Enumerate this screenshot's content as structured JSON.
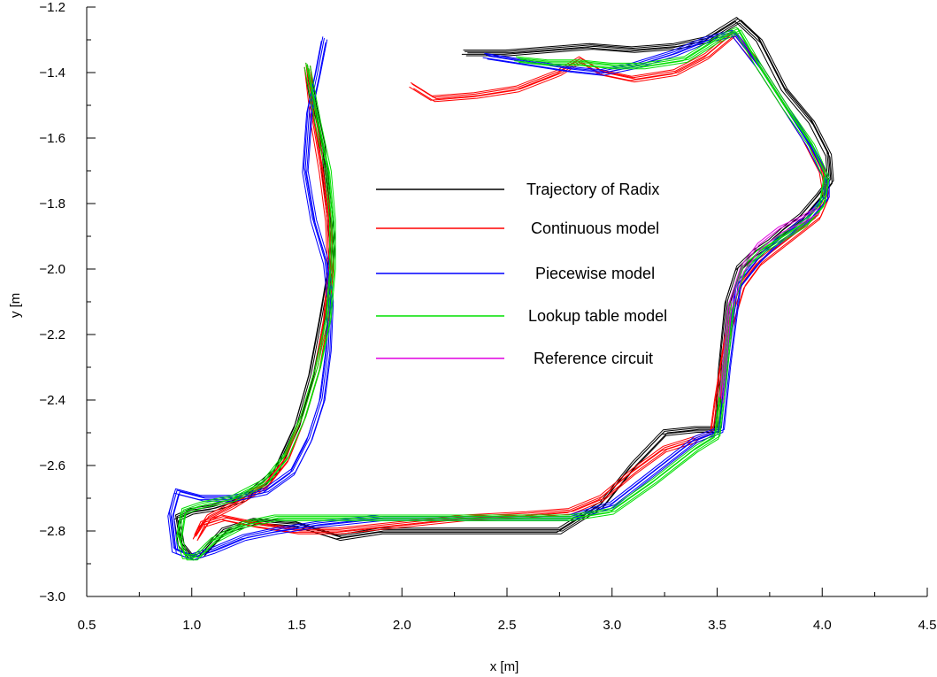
{
  "chart_data": {
    "type": "line",
    "xlabel": "x [m]",
    "ylabel": "y [m",
    "xlim": [
      0.5,
      4.5
    ],
    "ylim": [
      -3.0,
      -1.2
    ],
    "xticks": [
      "0.5",
      "1.0",
      "1.5",
      "2.0",
      "2.5",
      "3.0",
      "3.5",
      "4.0",
      "4.5"
    ],
    "yticks": [
      "−3.0",
      "−2.8",
      "−2.6",
      "−2.4",
      "−2.2",
      "−2.0",
      "−1.8",
      "−1.6",
      "−1.4",
      "−1.2"
    ],
    "grid": false,
    "legend_placement": "center",
    "series": [
      {
        "name": "Trajectory of Radix",
        "color": "#000000",
        "x": [
          1.55,
          1.58,
          1.62,
          1.65,
          1.67,
          1.66,
          1.62,
          1.57,
          1.5,
          1.4,
          1.25,
          1.1,
          1.0,
          0.93,
          0.95,
          1.0,
          1.05,
          1.15,
          1.3,
          1.5,
          1.7,
          1.9,
          2.2,
          2.5,
          2.75,
          2.95,
          3.1,
          3.25,
          3.4,
          3.5,
          3.52,
          3.55,
          3.6,
          3.68,
          3.75,
          3.82,
          3.9,
          3.98,
          4.04,
          4.03,
          3.95,
          3.82,
          3.7,
          3.6,
          3.55,
          3.45,
          3.3,
          3.1,
          2.9,
          2.7,
          2.5,
          2.3
        ],
        "y": [
          -1.38,
          -1.5,
          -1.62,
          -1.8,
          -1.92,
          -2.0,
          -2.15,
          -2.32,
          -2.48,
          -2.62,
          -2.7,
          -2.73,
          -2.74,
          -2.76,
          -2.84,
          -2.88,
          -2.87,
          -2.8,
          -2.77,
          -2.78,
          -2.82,
          -2.8,
          -2.8,
          -2.8,
          -2.8,
          -2.72,
          -2.6,
          -2.5,
          -2.49,
          -2.49,
          -2.3,
          -2.1,
          -2.0,
          -1.95,
          -1.92,
          -1.88,
          -1.84,
          -1.78,
          -1.73,
          -1.65,
          -1.55,
          -1.45,
          -1.3,
          -1.24,
          -1.26,
          -1.3,
          -1.32,
          -1.33,
          -1.32,
          -1.33,
          -1.34,
          -1.34
        ]
      },
      {
        "name": "Continuous model",
        "color": "#ff0000",
        "x": [
          1.55,
          1.58,
          1.62,
          1.65,
          1.66,
          1.64,
          1.6,
          1.53,
          1.45,
          1.35,
          1.2,
          1.08,
          1.02,
          1.05,
          1.15,
          1.3,
          1.5,
          1.7,
          2.0,
          2.3,
          2.6,
          2.8,
          2.95,
          3.1,
          3.25,
          3.4,
          3.48,
          3.5,
          3.55,
          3.62,
          3.7,
          3.8,
          3.9,
          3.98,
          4.02,
          4.0,
          3.92,
          3.8,
          3.68,
          3.58,
          3.45,
          3.3,
          3.1,
          2.95,
          2.85,
          2.75,
          2.55,
          2.35,
          2.15,
          2.05
        ],
        "y": [
          -1.38,
          -1.55,
          -1.7,
          -1.85,
          -2.0,
          -2.15,
          -2.3,
          -2.45,
          -2.58,
          -2.66,
          -2.72,
          -2.76,
          -2.82,
          -2.78,
          -2.76,
          -2.78,
          -2.8,
          -2.8,
          -2.78,
          -2.76,
          -2.75,
          -2.74,
          -2.7,
          -2.62,
          -2.55,
          -2.52,
          -2.5,
          -2.4,
          -2.2,
          -2.05,
          -1.98,
          -1.93,
          -1.88,
          -1.84,
          -1.78,
          -1.7,
          -1.6,
          -1.48,
          -1.36,
          -1.28,
          -1.35,
          -1.4,
          -1.42,
          -1.4,
          -1.36,
          -1.4,
          -1.45,
          -1.47,
          -1.48,
          -1.44
        ]
      },
      {
        "name": "Piecewise model",
        "color": "#0000ff",
        "x": [
          1.63,
          1.6,
          1.56,
          1.54,
          1.58,
          1.64,
          1.66,
          1.65,
          1.62,
          1.56,
          1.48,
          1.35,
          1.2,
          1.05,
          0.93,
          0.9,
          0.92,
          1.0,
          1.1,
          1.25,
          1.4,
          1.6,
          1.9,
          2.2,
          2.5,
          2.8,
          3.0,
          3.2,
          3.4,
          3.52,
          3.55,
          3.6,
          3.7,
          3.78,
          3.86,
          3.94,
          4.02,
          4.02,
          3.94,
          3.82,
          3.7,
          3.58,
          3.45,
          3.3,
          3.1,
          2.95,
          2.8,
          2.6,
          2.4
        ],
        "y": [
          -1.3,
          -1.4,
          -1.52,
          -1.7,
          -1.85,
          -1.98,
          -2.1,
          -2.25,
          -2.4,
          -2.52,
          -2.62,
          -2.68,
          -2.7,
          -2.7,
          -2.68,
          -2.75,
          -2.86,
          -2.88,
          -2.86,
          -2.82,
          -2.8,
          -2.78,
          -2.76,
          -2.76,
          -2.76,
          -2.76,
          -2.72,
          -2.62,
          -2.52,
          -2.49,
          -2.3,
          -2.05,
          -1.97,
          -1.92,
          -1.88,
          -1.84,
          -1.78,
          -1.72,
          -1.62,
          -1.5,
          -1.38,
          -1.28,
          -1.3,
          -1.34,
          -1.38,
          -1.4,
          -1.39,
          -1.37,
          -1.35
        ]
      },
      {
        "name": "Lookup table model",
        "color": "#00e000",
        "x": [
          1.55,
          1.6,
          1.65,
          1.67,
          1.67,
          1.65,
          1.6,
          1.53,
          1.45,
          1.35,
          1.2,
          1.05,
          0.96,
          0.94,
          0.97,
          1.02,
          1.1,
          1.25,
          1.4,
          1.6,
          1.9,
          2.2,
          2.5,
          2.8,
          3.0,
          3.2,
          3.4,
          3.5,
          3.53,
          3.57,
          3.63,
          3.72,
          3.82,
          3.92,
          4.0,
          4.02,
          3.95,
          3.82,
          3.7,
          3.6,
          3.5,
          3.35,
          3.15,
          3.0,
          2.85,
          2.7,
          2.55
        ],
        "y": [
          -1.38,
          -1.55,
          -1.7,
          -1.85,
          -2.0,
          -2.15,
          -2.3,
          -2.45,
          -2.57,
          -2.65,
          -2.7,
          -2.72,
          -2.74,
          -2.82,
          -2.88,
          -2.88,
          -2.83,
          -2.78,
          -2.76,
          -2.76,
          -2.76,
          -2.76,
          -2.76,
          -2.76,
          -2.74,
          -2.65,
          -2.55,
          -2.51,
          -2.35,
          -2.1,
          -1.99,
          -1.94,
          -1.9,
          -1.86,
          -1.8,
          -1.72,
          -1.62,
          -1.5,
          -1.38,
          -1.27,
          -1.3,
          -1.36,
          -1.38,
          -1.38,
          -1.37,
          -1.37,
          -1.36
        ]
      },
      {
        "name": "Reference circuit",
        "color": "#e000e0",
        "x": [
          3.52,
          3.56,
          3.62,
          3.7,
          3.8,
          3.9,
          3.98
        ],
        "y": [
          -2.4,
          -2.12,
          -2.0,
          -1.93,
          -1.88,
          -1.85,
          -1.82
        ]
      }
    ]
  }
}
